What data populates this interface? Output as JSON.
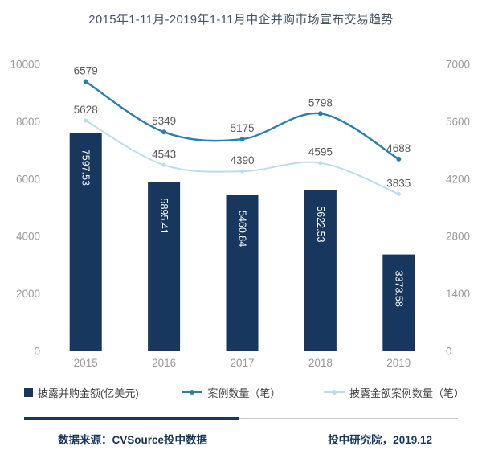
{
  "title": "2015年1-11月-2019年1-11月中企并购市场宣布交易趋势",
  "chart_data": {
    "type": "bar",
    "subtype": "bar-line-combo",
    "title": "2015年1-11月-2019年1-11月中企并购市场宣布交易趋势",
    "categories": [
      "2015",
      "2016",
      "2017",
      "2018",
      "2019"
    ],
    "series": [
      {
        "name": "披露并购金额(亿美元)",
        "type": "bar",
        "axis": "left",
        "values": [
          7597.53,
          5895.41,
          5460.84,
          5622.53,
          3373.58
        ],
        "color": "#17375e"
      },
      {
        "name": "案例数量（笔）",
        "type": "line",
        "axis": "right",
        "values": [
          6579,
          5349,
          5175,
          5798,
          4688
        ],
        "color": "#2a7fb0"
      },
      {
        "name": "披露金额案例数量（笔）",
        "type": "line",
        "axis": "right",
        "values": [
          5628,
          4543,
          4390,
          4595,
          3835
        ],
        "color": "#bcdcec"
      }
    ],
    "left_axis": {
      "min": 0,
      "max": 10000,
      "ticks": [
        0,
        2000,
        4000,
        6000,
        8000,
        10000
      ]
    },
    "right_axis": {
      "min": 0,
      "max": 7000,
      "ticks": [
        0,
        1400,
        2800,
        4200,
        5600,
        7000
      ]
    },
    "grid": false,
    "legend_position": "bottom"
  },
  "footer": {
    "source": "数据来源：CVSource投中数据",
    "publisher": "投中研究院，2019.12"
  },
  "colors": {
    "bar": "#17375e",
    "line_cases": "#2a7fb0",
    "line_disclosed_cases": "#bcdcec",
    "tick_label": "#9a9a9a",
    "data_label": "#595959",
    "bar_label": "#ffffff",
    "title_text": "#44546a",
    "legend_text": "#404040",
    "footer_text": "#17375e",
    "divider_navy": "#17375e",
    "divider_gray": "#c9c9c9"
  }
}
